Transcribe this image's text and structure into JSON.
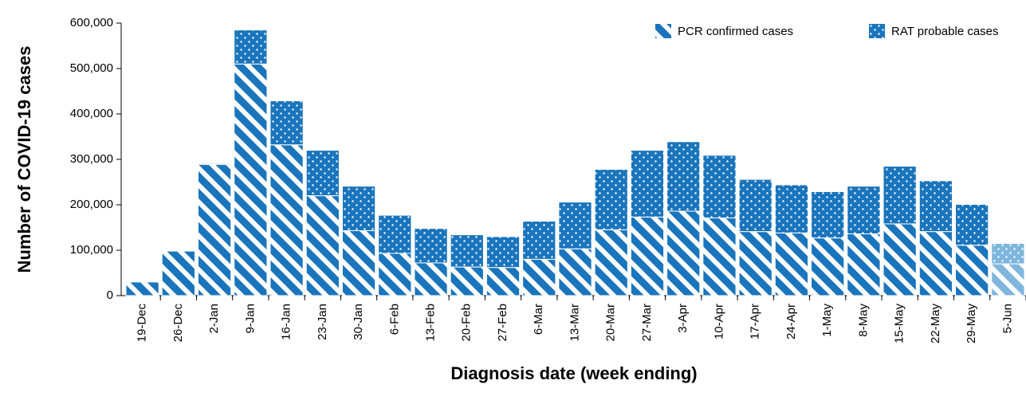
{
  "chart_data": {
    "type": "stacked_bar",
    "xlabel": "Diagnosis date (week ending)",
    "ylabel": "Number of COVID-19 cases",
    "categories": [
      "19-Dec",
      "26-Dec",
      "2-Jan",
      "9-Jan",
      "16-Jan",
      "23-Jan",
      "30-Jan",
      "6-Feb",
      "13-Feb",
      "20-Feb",
      "27-Feb",
      "6-Mar",
      "13-Mar",
      "20-Mar",
      "27-Mar",
      "3-Apr",
      "10-Apr",
      "17-Apr",
      "24-Apr",
      "1-May",
      "8-May",
      "15-May",
      "22-May",
      "29-May",
      "5-Jun"
    ],
    "series": [
      {
        "name": "PCR confirmed cases",
        "pattern": "stripes",
        "color": "#1a75bc",
        "colors": [
          "#1a75bc",
          "#1a75bc",
          "#1a75bc",
          "#1a75bc",
          "#1a75bc",
          "#1a75bc",
          "#1a75bc",
          "#1a75bc",
          "#1a75bc",
          "#1a75bc",
          "#1a75bc",
          "#1a75bc",
          "#1a75bc",
          "#1a75bc",
          "#1a75bc",
          "#1a75bc",
          "#1a75bc",
          "#1a75bc",
          "#1a75bc",
          "#1a75bc",
          "#1a75bc",
          "#1a75bc",
          "#1a75bc",
          "#1a75bc",
          "#7fb6de"
        ],
        "values": [
          30000,
          98000,
          289000,
          510000,
          332000,
          220000,
          143000,
          93000,
          72000,
          63000,
          62000,
          80000,
          103000,
          145000,
          173000,
          186000,
          171000,
          141000,
          138000,
          127000,
          136000,
          158000,
          141000,
          111000,
          70000
        ]
      },
      {
        "name": "RAT probable cases",
        "pattern": "dots",
        "color": "#1a75bc",
        "colors": [
          "#1a75bc",
          "#1a75bc",
          "#1a75bc",
          "#1a75bc",
          "#1a75bc",
          "#1a75bc",
          "#1a75bc",
          "#1a75bc",
          "#1a75bc",
          "#1a75bc",
          "#1a75bc",
          "#1a75bc",
          "#1a75bc",
          "#1a75bc",
          "#1a75bc",
          "#1a75bc",
          "#1a75bc",
          "#1a75bc",
          "#1a75bc",
          "#1a75bc",
          "#1a75bc",
          "#1a75bc",
          "#1a75bc",
          "#1a75bc",
          "#7fb6de"
        ],
        "values": [
          0,
          0,
          2000,
          75000,
          97000,
          100000,
          98000,
          84000,
          76000,
          71000,
          68000,
          84000,
          103000,
          133000,
          147000,
          153000,
          138000,
          115000,
          106000,
          102000,
          105000,
          127000,
          112000,
          90000,
          45000
        ]
      }
    ],
    "ylim": [
      0,
      600000
    ],
    "yticks": [
      0,
      {
        "value": 100000,
        "label": "100,000"
      },
      {
        "value": 200000,
        "label": "200,000"
      },
      {
        "value": 300000,
        "label": "300,000"
      },
      {
        "value": 400000,
        "label": "400,000"
      },
      {
        "value": 500000,
        "label": "500,000"
      },
      {
        "value": 600000,
        "label": "600,000"
      }
    ],
    "legend": "top-right"
  }
}
